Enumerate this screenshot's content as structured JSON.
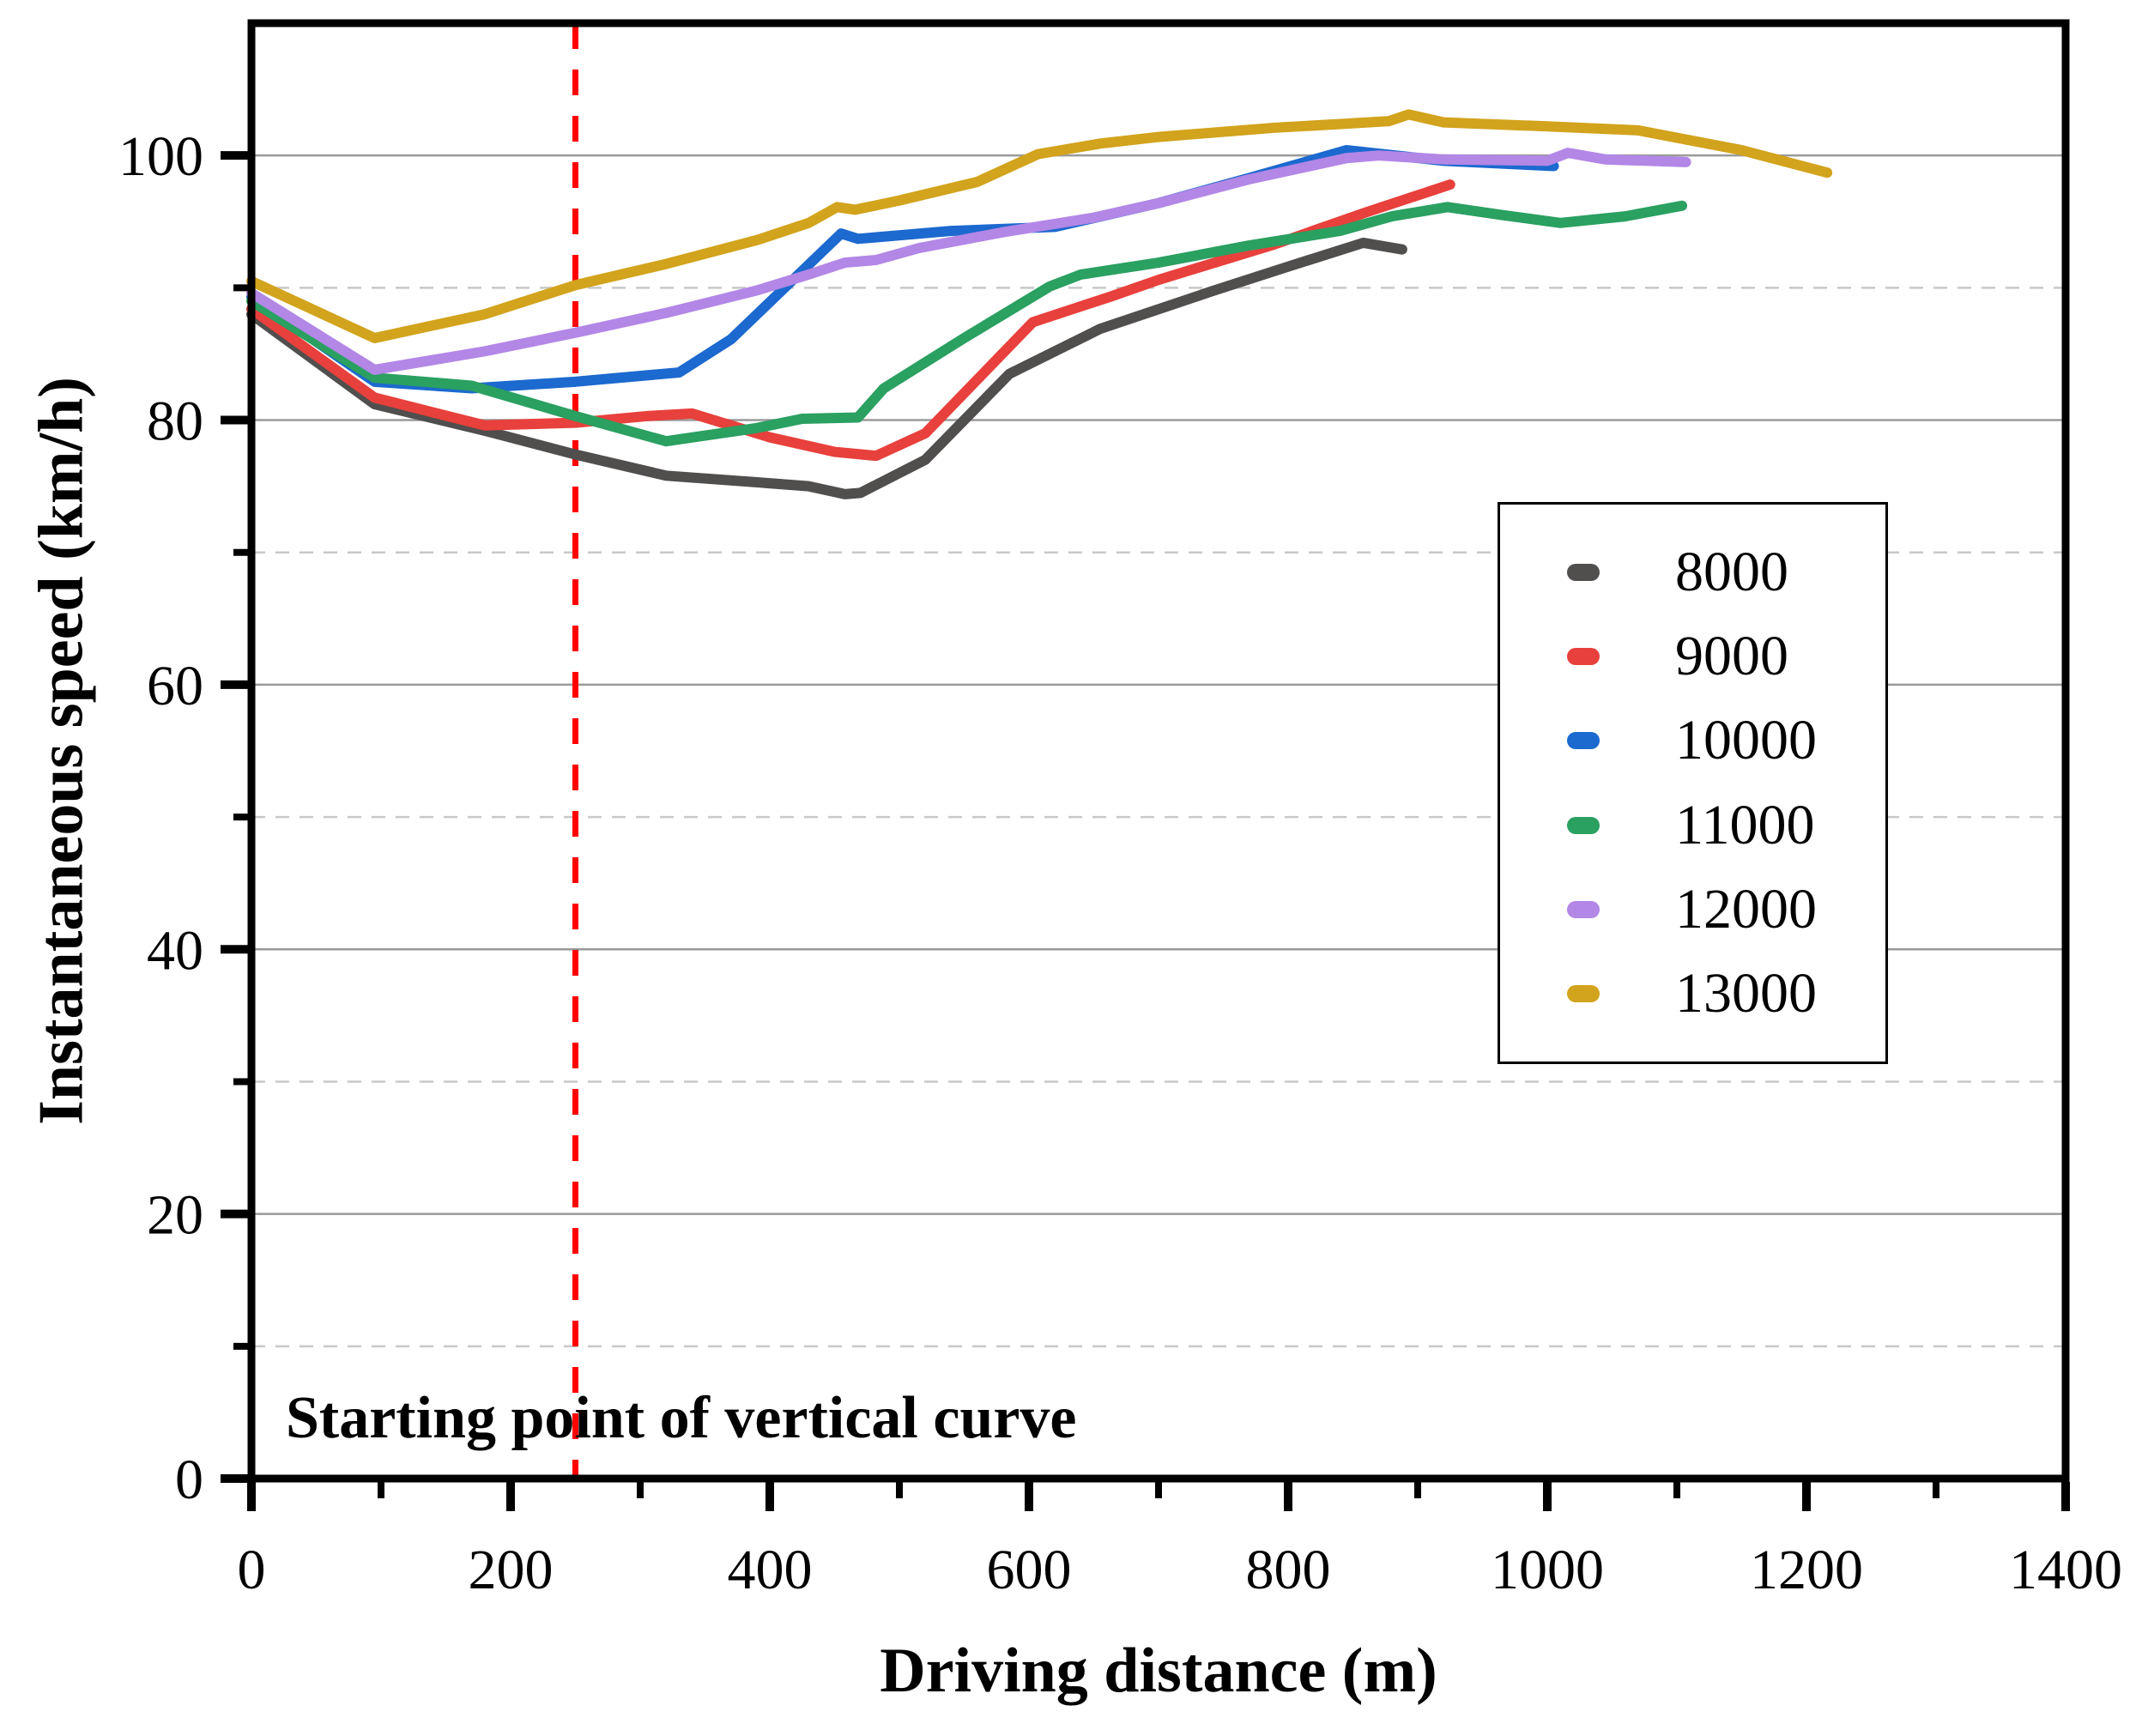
{
  "chart_data": {
    "type": "line",
    "title": "",
    "xlabel": "Driving distance (m)",
    "ylabel": "Instantaneous speed (km/h)",
    "annotation": "Starting point of vertical curve",
    "xlim": [
      0,
      1400
    ],
    "ylim": [
      0,
      110
    ],
    "x_major_ticks": [
      0,
      200,
      400,
      600,
      800,
      1000,
      1200,
      1400
    ],
    "x_minor_ticks": [
      100,
      300,
      500,
      700,
      900,
      1100,
      1300
    ],
    "y_major_ticks": [
      0,
      20,
      40,
      60,
      80,
      100
    ],
    "y_minor_ticks": [
      10,
      30,
      50,
      70,
      90
    ],
    "grid": {
      "major": "solid",
      "minor": "dashed",
      "major_color": "#9a9a9a",
      "minor_color": "#c8c8c8"
    },
    "legend_position": "middle-right",
    "vline": {
      "x": 250,
      "color": "#ff0000",
      "style": "dashed"
    },
    "series": [
      {
        "name": "8000",
        "color": "#514e4e",
        "points": [
          [
            0,
            88.0
          ],
          [
            95,
            81.2
          ],
          [
            180,
            79.2
          ],
          [
            250,
            77.4
          ],
          [
            320,
            75.8
          ],
          [
            390,
            75.3
          ],
          [
            430,
            75.0
          ],
          [
            458,
            74.4
          ],
          [
            470,
            74.5
          ],
          [
            520,
            77.0
          ],
          [
            585,
            83.5
          ],
          [
            655,
            86.9
          ],
          [
            740,
            89.7
          ],
          [
            800,
            91.6
          ],
          [
            858,
            93.4
          ],
          [
            888,
            92.9
          ]
        ]
      },
      {
        "name": "9000",
        "color": "#e8403c",
        "points": [
          [
            0,
            88.4
          ],
          [
            95,
            81.7
          ],
          [
            180,
            79.6
          ],
          [
            250,
            79.8
          ],
          [
            305,
            80.3
          ],
          [
            340,
            80.5
          ],
          [
            400,
            78.7
          ],
          [
            450,
            77.6
          ],
          [
            482,
            77.3
          ],
          [
            520,
            79.0
          ],
          [
            603,
            87.4
          ],
          [
            665,
            89.4
          ],
          [
            700,
            90.6
          ],
          [
            790,
            93.3
          ],
          [
            860,
            95.7
          ],
          [
            925,
            97.8
          ]
        ]
      },
      {
        "name": "10000",
        "color": "#1c69cf",
        "points": [
          [
            0,
            89.3
          ],
          [
            95,
            82.9
          ],
          [
            170,
            82.4
          ],
          [
            250,
            82.9
          ],
          [
            330,
            83.6
          ],
          [
            370,
            86.1
          ],
          [
            455,
            94.1
          ],
          [
            468,
            93.7
          ],
          [
            540,
            94.3
          ],
          [
            620,
            94.6
          ],
          [
            700,
            96.4
          ],
          [
            770,
            98.3
          ],
          [
            845,
            100.4
          ],
          [
            920,
            99.6
          ],
          [
            1005,
            99.2
          ]
        ]
      },
      {
        "name": "11000",
        "color": "#2aa061",
        "points": [
          [
            0,
            89.0
          ],
          [
            95,
            83.2
          ],
          [
            170,
            82.6
          ],
          [
            250,
            80.3
          ],
          [
            320,
            78.4
          ],
          [
            390,
            79.4
          ],
          [
            425,
            80.1
          ],
          [
            468,
            80.2
          ],
          [
            488,
            82.4
          ],
          [
            550,
            86.2
          ],
          [
            616,
            90.1
          ],
          [
            640,
            91.0
          ],
          [
            700,
            91.9
          ],
          [
            770,
            93.2
          ],
          [
            840,
            94.3
          ],
          [
            880,
            95.4
          ],
          [
            923,
            96.1
          ],
          [
            965,
            95.5
          ],
          [
            1010,
            94.9
          ],
          [
            1060,
            95.4
          ],
          [
            1104,
            96.2
          ]
        ]
      },
      {
        "name": "12000",
        "color": "#b287e6",
        "points": [
          [
            0,
            89.6
          ],
          [
            95,
            83.8
          ],
          [
            180,
            85.2
          ],
          [
            250,
            86.6
          ],
          [
            320,
            88.1
          ],
          [
            390,
            89.8
          ],
          [
            430,
            91.0
          ],
          [
            458,
            91.9
          ],
          [
            482,
            92.1
          ],
          [
            515,
            93.0
          ],
          [
            580,
            94.2
          ],
          [
            650,
            95.3
          ],
          [
            700,
            96.4
          ],
          [
            770,
            98.2
          ],
          [
            845,
            99.8
          ],
          [
            870,
            100.0
          ],
          [
            920,
            99.7
          ],
          [
            1000,
            99.6
          ],
          [
            1016,
            100.2
          ],
          [
            1045,
            99.7
          ],
          [
            1107,
            99.5
          ]
        ]
      },
      {
        "name": "13000",
        "color": "#d2a31c",
        "points": [
          [
            0,
            90.5
          ],
          [
            95,
            86.2
          ],
          [
            180,
            88.0
          ],
          [
            250,
            90.2
          ],
          [
            320,
            91.8
          ],
          [
            390,
            93.6
          ],
          [
            430,
            94.9
          ],
          [
            452,
            96.1
          ],
          [
            466,
            95.9
          ],
          [
            500,
            96.6
          ],
          [
            560,
            98.0
          ],
          [
            607,
            100.1
          ],
          [
            655,
            100.9
          ],
          [
            700,
            101.4
          ],
          [
            790,
            102.1
          ],
          [
            845,
            102.4
          ],
          [
            878,
            102.6
          ],
          [
            893,
            103.1
          ],
          [
            920,
            102.5
          ],
          [
            1000,
            102.2
          ],
          [
            1070,
            101.9
          ],
          [
            1150,
            100.4
          ],
          [
            1216,
            98.7
          ]
        ]
      }
    ]
  }
}
